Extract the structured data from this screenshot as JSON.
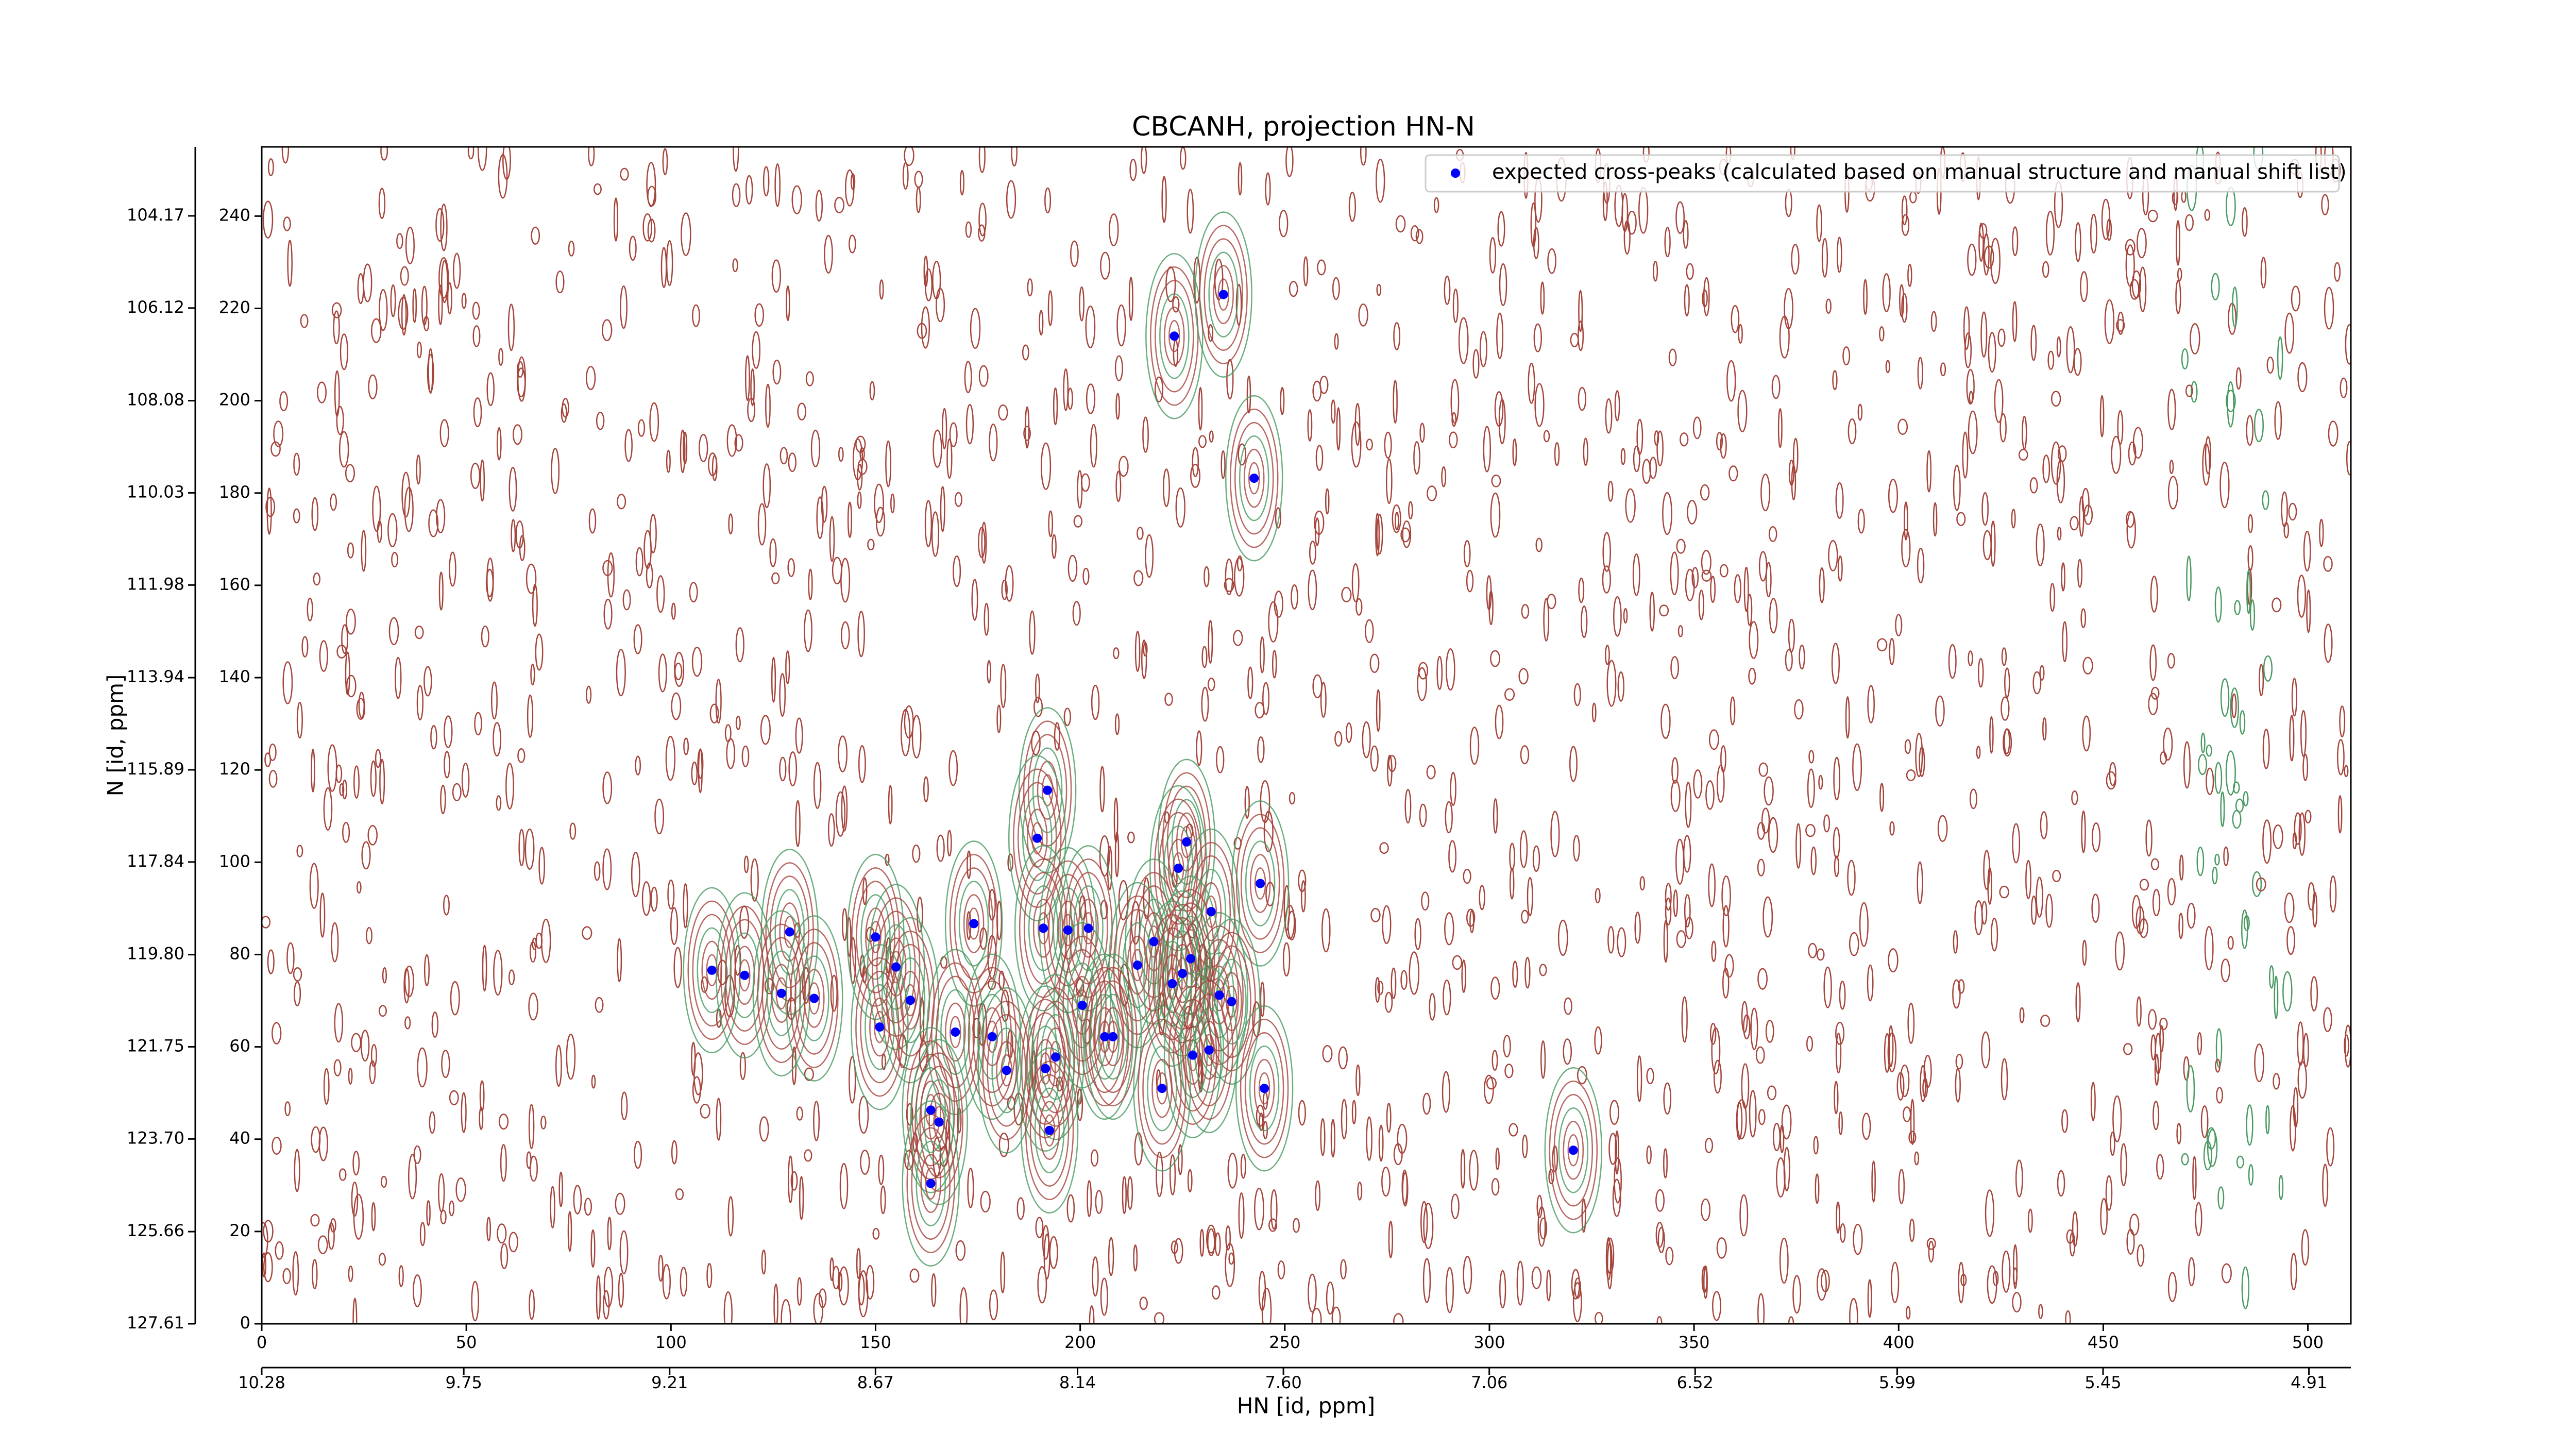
{
  "chart_data": {
    "type": "scatter",
    "title": "CBCANH, projection HN-N",
    "x_label": "HN [id, ppm]",
    "y_label": "N [id, ppm]",
    "series": [
      {
        "name": "expected cross-peaks (calculated based on manual structure and manual shift list)",
        "color": "#0000ff",
        "x": [
          223,
          235,
          242.5,
          192,
          189.5,
          226,
          224,
          244,
          232,
          174,
          191,
          197,
          202,
          129,
          150,
          218,
          214,
          227,
          155,
          110,
          118,
          225,
          222.5,
          127,
          135,
          158.5,
          234,
          237,
          200.5,
          151,
          169.5,
          178.5,
          206,
          208,
          227.5,
          194,
          231.5,
          191.5,
          182,
          220,
          245,
          163.5,
          165.5,
          192.5,
          320.5,
          163.5
        ],
        "values": [
          214,
          223,
          183.2,
          115.6,
          105.2,
          104.4,
          98.7,
          95.4,
          89.3,
          86.7,
          85.7,
          85.3,
          85.7,
          84.9,
          83.8,
          82.8,
          77.7,
          79.1,
          77.3,
          76.6,
          75.5,
          75.9,
          73.7,
          71.6,
          70.5,
          70.1,
          71.2,
          69.8,
          69,
          64.3,
          63.2,
          62.2,
          62.2,
          62.2,
          58.2,
          57.8,
          59.3,
          55.3,
          54.9,
          51,
          51,
          46.3,
          43.7,
          41.9,
          37.6,
          30.4
        ]
      }
    ],
    "xlim": [
      0,
      510.5
    ],
    "ylim": [
      0,
      255
    ],
    "xticks": [
      0,
      50,
      100,
      150,
      200,
      250,
      300,
      350,
      400,
      450,
      500
    ],
    "yticks": [
      0,
      20,
      40,
      60,
      80,
      100,
      120,
      140,
      160,
      180,
      200,
      220,
      240
    ],
    "x2lim": [
      10.28,
      4.8
    ],
    "x2ticks": [
      10.28,
      9.75,
      9.21,
      8.67,
      8.14,
      {
        "value": 7.6,
        "label": "7.60"
      },
      7.06,
      6.52,
      5.99,
      5.45,
      4.91
    ],
    "y2lim": [
      127.61,
      102.71
    ],
    "y2ticks": [
      127.61,
      125.66,
      {
        "value": 123.7,
        "label": "123.70"
      },
      121.75,
      {
        "value": 119.8,
        "label": "119.80"
      },
      117.84,
      115.89,
      113.94,
      111.98,
      110.03,
      108.08,
      106.12,
      104.17
    ],
    "legend": "upper right",
    "contour_colors": [
      "#a5453c",
      "#4a9a62"
    ]
  }
}
